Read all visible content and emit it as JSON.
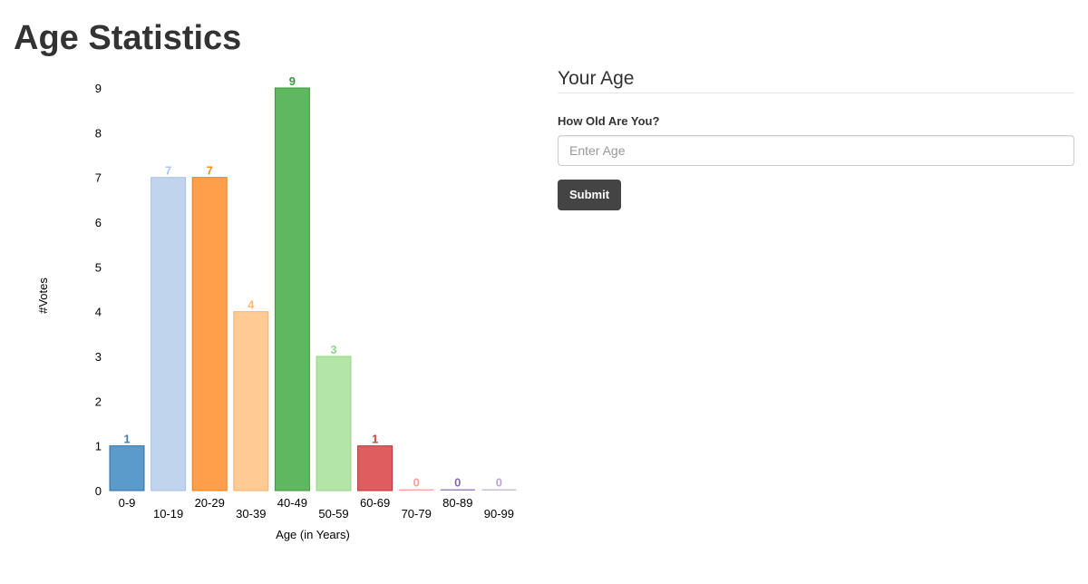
{
  "page": {
    "title": "Age Statistics"
  },
  "form": {
    "legend": "Your Age",
    "label": "How Old Are You?",
    "input_placeholder": "Enter Age",
    "input_value": "",
    "submit_label": "Submit"
  },
  "chart_data": {
    "type": "bar",
    "title": "",
    "xlabel": "Age (in Years)",
    "ylabel": "#Votes",
    "ylim": [
      0,
      9
    ],
    "yticks": [
      0,
      1,
      2,
      3,
      4,
      5,
      6,
      7,
      8,
      9
    ],
    "grid": false,
    "categories": [
      "0-9",
      "10-19",
      "20-29",
      "30-39",
      "40-49",
      "50-59",
      "60-69",
      "70-79",
      "80-89",
      "90-99"
    ],
    "values": [
      1,
      7,
      7,
      4,
      9,
      3,
      1,
      0,
      0,
      0
    ],
    "colors": [
      "#5a9bcb",
      "#c0d4ee",
      "#ff9f4a",
      "#ffca94",
      "#5fb85f",
      "#b3e6a6",
      "#e05d5f",
      "#ffa8a3",
      "#a183c4",
      "#cdbbdf"
    ],
    "label_colors": [
      "#3d7fb8",
      "#a9c4ea",
      "#ff8c1a",
      "#ffb978",
      "#3a9a3a",
      "#8fd98f",
      "#d33f41",
      "#ff9a94",
      "#8866b4",
      "#b9a6d6"
    ],
    "stroke_colors": [
      "#2f6fa6",
      "#a9c1e6",
      "#e8801e",
      "#f3b06f",
      "#3a9a3a",
      "#95d489",
      "#b83537",
      "#f29b95",
      "#7a55a8",
      "#b49fd3"
    ]
  }
}
